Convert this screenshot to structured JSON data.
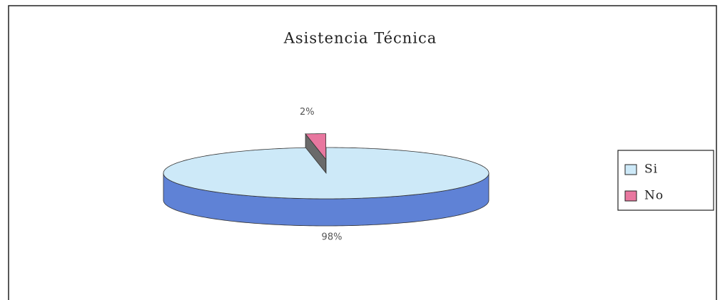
{
  "chart_data": {
    "type": "pie3d",
    "title": "Asistencia Técnica",
    "categories": [
      "Si",
      "No"
    ],
    "values": [
      98,
      2
    ],
    "value_labels": [
      "98%",
      "2%"
    ],
    "colors": [
      "#cde9f8",
      "#e8779f"
    ],
    "legend": "right"
  }
}
